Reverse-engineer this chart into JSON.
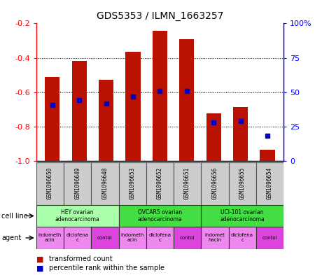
{
  "title": "GDS5353 / ILMN_1663257",
  "samples": [
    "GSM1096650",
    "GSM1096649",
    "GSM1096648",
    "GSM1096653",
    "GSM1096652",
    "GSM1096651",
    "GSM1096656",
    "GSM1096655",
    "GSM1096654"
  ],
  "red_values": [
    -0.51,
    -0.42,
    -0.53,
    -0.365,
    -0.245,
    -0.29,
    -0.725,
    -0.685,
    -0.935
  ],
  "blue_values_left": [
    -0.675,
    -0.645,
    -0.665,
    -0.625,
    -0.595,
    -0.595,
    -0.775,
    -0.77,
    -0.855
  ],
  "ylim_left": [
    -1.0,
    -0.2
  ],
  "ylim_right": [
    0,
    100
  ],
  "right_ticks": [
    0,
    25,
    50,
    75,
    100
  ],
  "left_ticks": [
    -1.0,
    -0.8,
    -0.6,
    -0.4,
    -0.2
  ],
  "cell_line_info": [
    {
      "label": "HEY ovarian\nadenocarcinoma",
      "start": 0,
      "end": 2,
      "color": "#AAFFAA"
    },
    {
      "label": "OVCAR5 ovarian\nadenocarcinoma",
      "start": 3,
      "end": 5,
      "color": "#44DD44"
    },
    {
      "label": "UCI-101 ovarian\nadenocarcinoma",
      "start": 6,
      "end": 8,
      "color": "#44DD44"
    }
  ],
  "agent_info": [
    {
      "label": "indometh\nacin",
      "idx": 0,
      "color": "#EE88EE"
    },
    {
      "label": "diclofena\nc",
      "idx": 1,
      "color": "#EE88EE"
    },
    {
      "label": "contol",
      "idx": 2,
      "color": "#DD44DD"
    },
    {
      "label": "indometh\nacin",
      "idx": 3,
      "color": "#EE88EE"
    },
    {
      "label": "diclofena\nc",
      "idx": 4,
      "color": "#EE88EE"
    },
    {
      "label": "contol",
      "idx": 5,
      "color": "#DD44DD"
    },
    {
      "label": "indomet\nhacin",
      "idx": 6,
      "color": "#EE88EE"
    },
    {
      "label": "diclofena\nc",
      "idx": 7,
      "color": "#EE88EE"
    },
    {
      "label": "contol",
      "idx": 8,
      "color": "#DD44DD"
    }
  ],
  "bar_color": "#BB1100",
  "dot_color": "#0000CC",
  "bar_width": 0.55,
  "bg_color": "#FFFFFF",
  "title_fontsize": 10,
  "sample_bg": "#CCCCCC",
  "sample_border": "#888888"
}
